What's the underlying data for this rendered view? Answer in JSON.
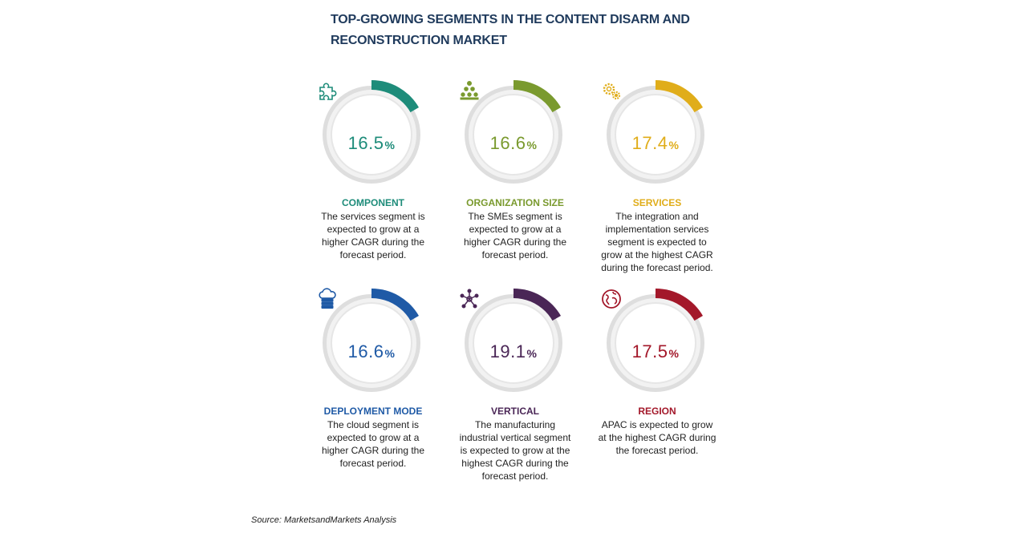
{
  "title": "TOP-GROWING SEGMENTS IN THE CONTENT DISARM AND RECONSTRUCTION MARKET",
  "source": "Source: MarketsandMarkets Analysis",
  "segments": [
    {
      "value": "16.5",
      "unit": "%",
      "label": "COMPONENT",
      "description": "The services segment is expected to grow at a higher CAGR during the forecast period.",
      "color": "#1e8c7a",
      "icon": "puzzle-icon"
    },
    {
      "value": "16.6",
      "unit": "%",
      "label": "ORGANIZATION SIZE",
      "description": "The SMEs segment is expected to grow at a higher CAGR during the forecast period.",
      "color": "#7a9a2e",
      "icon": "hierarchy-icon"
    },
    {
      "value": "17.4",
      "unit": "%",
      "label": "SERVICES",
      "description": "The integration and implementation services segment is expected to grow at the highest CAGR during the forecast period.",
      "color": "#e0ad1a",
      "icon": "gears-icon"
    },
    {
      "value": "16.6",
      "unit": "%",
      "label": "DEPLOYMENT MODE",
      "description": "The cloud segment is expected to grow at a higher CAGR during the forecast period.",
      "color": "#1f5aa6",
      "icon": "cloud-server-icon"
    },
    {
      "value": "19.1",
      "unit": "%",
      "label": "VERTICAL",
      "description": "The manufacturing industrial vertical segment is expected to grow at the highest CAGR during the forecast period.",
      "color": "#4a2656",
      "icon": "network-icon"
    },
    {
      "value": "17.5",
      "unit": "%",
      "label": "REGION",
      "description": "APAC is expected to grow at the highest CAGR during the forecast period.",
      "color": "#a3182a",
      "icon": "globe-icon"
    }
  ]
}
